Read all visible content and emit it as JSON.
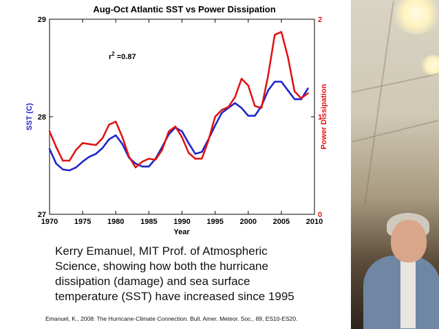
{
  "chart_data": {
    "type": "line",
    "title": "Aug-Oct Atlantic SST vs Power Dissipation",
    "xlabel": "Year",
    "ylabel": "SST (C)",
    "y2label": "Power Dissipation",
    "xlim": [
      1970,
      2010
    ],
    "ylim": [
      27,
      29
    ],
    "y2lim": [
      0,
      2
    ],
    "xticks": [
      "1970",
      "1975",
      "1980",
      "1985",
      "1990",
      "1995",
      "2000",
      "2005",
      "2010"
    ],
    "yticks": [
      "27",
      "28",
      "29"
    ],
    "y2ticks": [
      "0",
      "1",
      "2"
    ],
    "annotation": "r",
    "annotation_sup": "2",
    "annotation_value": " =0.87",
    "grid": false,
    "series": [
      {
        "name": "SST (C)",
        "axis": "left",
        "color": "#1f24c8",
        "x": [
          1970,
          1971,
          1972,
          1973,
          1974,
          1975,
          1976,
          1977,
          1978,
          1979,
          1980,
          1981,
          1982,
          1983,
          1984,
          1985,
          1986,
          1987,
          1988,
          1989,
          1990,
          1991,
          1992,
          1993,
          1994,
          1995,
          1996,
          1997,
          1998,
          1999,
          2000,
          2001,
          2002,
          2003,
          2004,
          2005,
          2006,
          2007,
          2008,
          2009
        ],
        "values": [
          27.67,
          27.52,
          27.46,
          27.45,
          27.48,
          27.54,
          27.59,
          27.62,
          27.68,
          27.77,
          27.81,
          27.72,
          27.58,
          27.52,
          27.49,
          27.49,
          27.57,
          27.69,
          27.82,
          27.89,
          27.85,
          27.73,
          27.62,
          27.64,
          27.77,
          27.91,
          28.04,
          28.09,
          28.14,
          28.09,
          28.01,
          28.01,
          28.11,
          28.27,
          28.36,
          28.36,
          28.27,
          28.18,
          28.18,
          28.29
        ]
      },
      {
        "name": "Power Dissipation",
        "axis": "right",
        "color": "#e01414",
        "x": [
          1970,
          1971,
          1972,
          1973,
          1974,
          1975,
          1976,
          1977,
          1978,
          1979,
          1980,
          1981,
          1982,
          1983,
          1984,
          1985,
          1986,
          1987,
          1988,
          1989,
          1990,
          1991,
          1992,
          1993,
          1994,
          1995,
          1996,
          1997,
          1998,
          1999,
          2000,
          2001,
          2002,
          2003,
          2004,
          2005,
          2006,
          2007,
          2008,
          2009
        ],
        "values": [
          0.85,
          0.69,
          0.55,
          0.55,
          0.66,
          0.73,
          0.72,
          0.71,
          0.78,
          0.92,
          0.95,
          0.79,
          0.59,
          0.48,
          0.54,
          0.57,
          0.56,
          0.66,
          0.85,
          0.9,
          0.79,
          0.63,
          0.57,
          0.57,
          0.76,
          1.0,
          1.07,
          1.1,
          1.2,
          1.39,
          1.32,
          1.11,
          1.09,
          1.42,
          1.84,
          1.87,
          1.61,
          1.26,
          1.19,
          1.24
        ]
      }
    ]
  },
  "caption": {
    "lines": [
      "Kerry Emanuel, MIT Prof. of Atmospheric",
      "Science, showing how both the hurricane",
      "dissipation (damage) and sea surface",
      "temperature (SST) have increased since 1995"
    ]
  },
  "citation": "Emanuel, K., 2008: The Hurricane-Climate Connection. Bull. Amer. Meteor. Soc., 89, ES10-ES20.",
  "photo": {
    "alt": "Kerry Emanuel photo"
  }
}
